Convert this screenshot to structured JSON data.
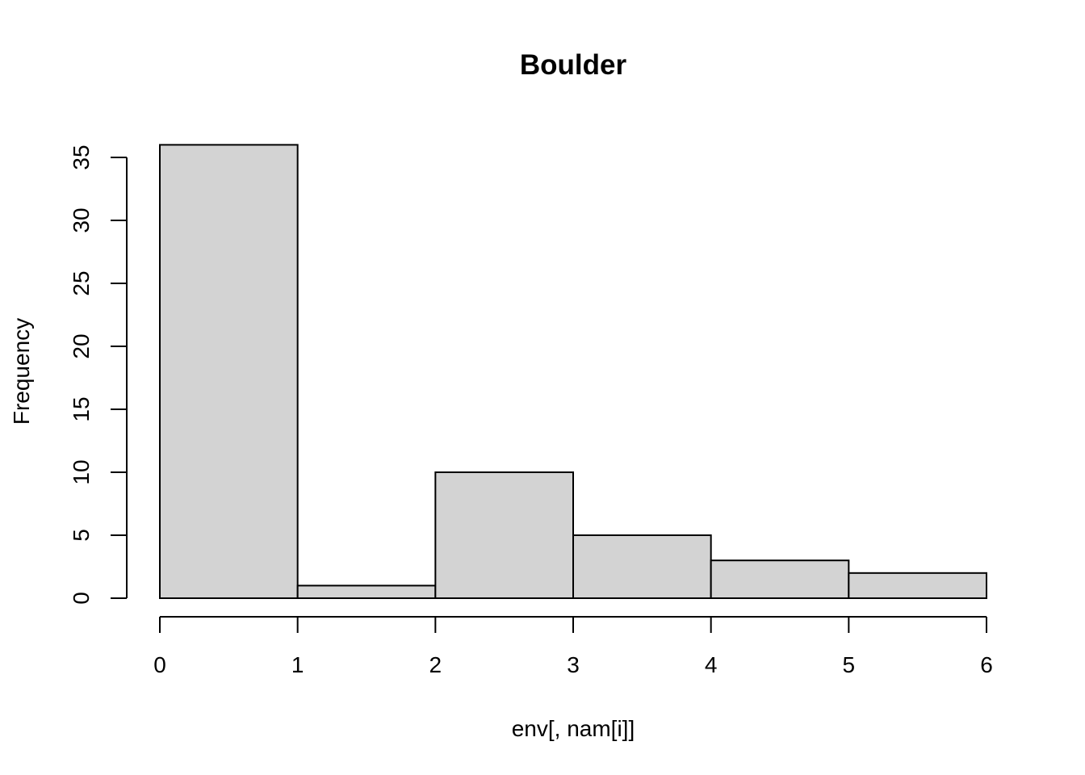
{
  "chart_data": {
    "type": "bar",
    "title": "Boulder",
    "xlabel": "env[, nam[i]]",
    "ylabel": "Frequency",
    "bins": [
      {
        "x0": 0,
        "x1": 1,
        "count": 36
      },
      {
        "x0": 1,
        "x1": 2,
        "count": 1
      },
      {
        "x0": 2,
        "x1": 3,
        "count": 10
      },
      {
        "x0": 3,
        "x1": 4,
        "count": 5
      },
      {
        "x0": 4,
        "x1": 5,
        "count": 3
      },
      {
        "x0": 5,
        "x1": 6,
        "count": 2
      }
    ],
    "xlim": [
      0,
      6
    ],
    "ylim": [
      0,
      36
    ],
    "x_ticks": [
      "0",
      "1",
      "2",
      "3",
      "4",
      "5",
      "6"
    ],
    "y_ticks": [
      "0",
      "5",
      "10",
      "15",
      "20",
      "25",
      "30",
      "35"
    ],
    "bar_color": "#d3d3d3",
    "grid": false,
    "legend": "none"
  }
}
